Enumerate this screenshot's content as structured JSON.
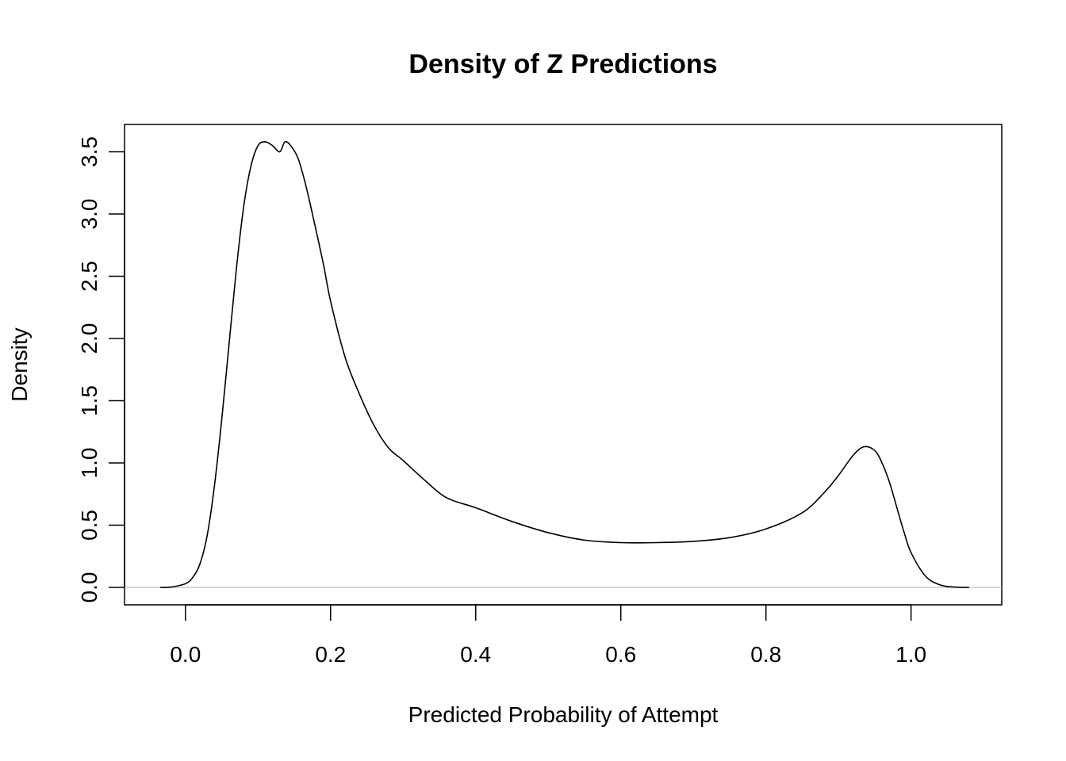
{
  "chart_data": {
    "type": "line",
    "title": "Density of Z Predictions",
    "xlabel": "Predicted Probability of Attempt",
    "ylabel": "Density",
    "xlim": [
      -0.084,
      1.125
    ],
    "ylim": [
      -0.14,
      3.72
    ],
    "x_ticks": [
      0.0,
      0.2,
      0.4,
      0.6,
      0.8,
      1.0
    ],
    "x_tick_labels": [
      "0.0",
      "0.2",
      "0.4",
      "0.6",
      "0.8",
      "1.0"
    ],
    "y_ticks": [
      0.0,
      0.5,
      1.0,
      1.5,
      2.0,
      2.5,
      3.0,
      3.5
    ],
    "y_tick_labels": [
      "0.0",
      "0.5",
      "1.0",
      "1.5",
      "2.0",
      "2.5",
      "3.0",
      "3.5"
    ],
    "baseline": 0,
    "grid": false,
    "series": [
      {
        "x": [
          -0.035,
          -0.02,
          0.0,
          0.01,
          0.02,
          0.03,
          0.04,
          0.05,
          0.06,
          0.07,
          0.08,
          0.09,
          0.1,
          0.11,
          0.12,
          0.13,
          0.137,
          0.145,
          0.155,
          0.165,
          0.175,
          0.19,
          0.2,
          0.22,
          0.24,
          0.26,
          0.28,
          0.3,
          0.33,
          0.36,
          0.4,
          0.45,
          0.5,
          0.55,
          0.6,
          0.65,
          0.7,
          0.75,
          0.8,
          0.85,
          0.88,
          0.9,
          0.92,
          0.935,
          0.95,
          0.96,
          0.97,
          0.98,
          0.99,
          1.0,
          1.02,
          1.04,
          1.06,
          1.08
        ],
        "y": [
          0.0,
          0.003,
          0.03,
          0.08,
          0.19,
          0.42,
          0.82,
          1.35,
          1.95,
          2.55,
          3.05,
          3.38,
          3.55,
          3.58,
          3.55,
          3.5,
          3.58,
          3.55,
          3.45,
          3.25,
          3.0,
          2.6,
          2.3,
          1.85,
          1.55,
          1.3,
          1.12,
          1.02,
          0.86,
          0.72,
          0.64,
          0.53,
          0.44,
          0.38,
          0.36,
          0.36,
          0.37,
          0.4,
          0.47,
          0.6,
          0.76,
          0.9,
          1.06,
          1.13,
          1.1,
          1.0,
          0.85,
          0.65,
          0.45,
          0.28,
          0.09,
          0.02,
          0.003,
          0.0
        ]
      }
    ]
  }
}
